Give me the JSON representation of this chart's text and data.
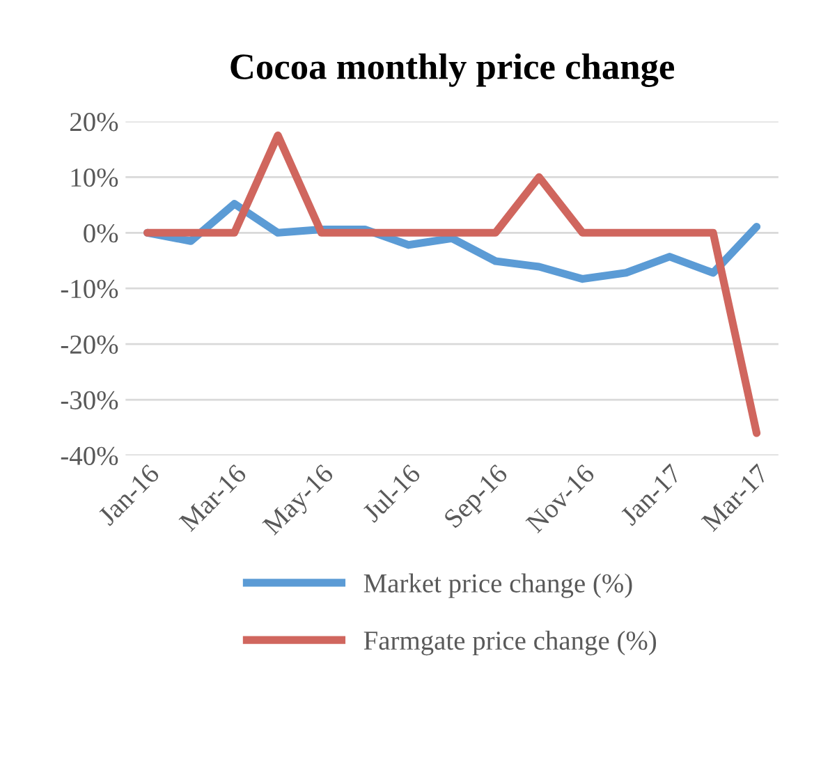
{
  "chart_data": {
    "type": "line",
    "title": "Cocoa monthly price change",
    "categories": [
      "Jan-16",
      null,
      "Mar-16",
      null,
      "May-16",
      null,
      "Jul-16",
      null,
      "Sep-16",
      null,
      "Nov-16",
      null,
      "Jan-17",
      null,
      "Mar-17"
    ],
    "series": [
      {
        "name": "Market price change (%)",
        "color": "#5b9bd5",
        "values": [
          0,
          -1.5,
          5.2,
          0,
          0.6,
          0.6,
          -2.2,
          -1.0,
          -5.1,
          -6.1,
          -8.3,
          -7.2,
          -4.3,
          -7.2,
          1.1
        ]
      },
      {
        "name": "Farmgate price change (%)",
        "color": "#d0665e",
        "values": [
          0,
          0,
          0,
          17.5,
          0,
          0,
          0,
          0,
          0,
          10,
          0,
          0,
          0,
          0,
          -36
        ]
      }
    ],
    "ylim": [
      -40,
      20
    ],
    "yticks": [
      {
        "value": -40,
        "label": "-40%"
      },
      {
        "value": -30,
        "label": "-30%"
      },
      {
        "value": -20,
        "label": "-20%"
      },
      {
        "value": -10,
        "label": "-10%"
      },
      {
        "value": 0,
        "label": "0%"
      },
      {
        "value": 10,
        "label": "10%"
      },
      {
        "value": 20,
        "label": "20%"
      }
    ],
    "grid": "y",
    "legend": "bottom",
    "marker": "none",
    "line_style": "solid"
  }
}
